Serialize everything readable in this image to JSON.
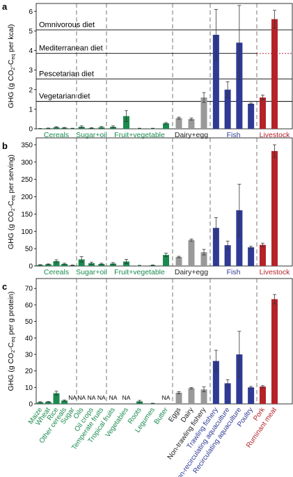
{
  "colors": {
    "cereals": "#1a8a4e",
    "sugar": "#1a8a4e",
    "fruit": "#1a8a4e",
    "dairy": "#999999",
    "fish": "#2e3a94",
    "livestock": "#b4232a",
    "label_green": "#1a8a4e",
    "label_dairy": "#222222",
    "label_fish": "#2e3a94",
    "label_livestock": "#b4232a"
  },
  "groups": [
    {
      "key": "cereals",
      "name": "Cereals",
      "count": 5
    },
    {
      "key": "sugar",
      "name": "Sugar+oil",
      "count": 3
    },
    {
      "key": "fruit",
      "name": "Fruit+vegetable",
      "count": 5
    },
    {
      "key": "dairy",
      "name": "Dairy+egg",
      "count": 3
    },
    {
      "key": "fish",
      "name": "Fish",
      "count": 4
    },
    {
      "key": "livestock",
      "name": "Livestock",
      "count": 3
    }
  ],
  "food_labels": [
    "Maize",
    "Wheat",
    "Rice",
    "Other cereals",
    "Sugar",
    "Oils",
    "Oil crops",
    "Temperate fruits",
    "Tropical fruits",
    "Vegetables",
    "Roots",
    "Legumes",
    "Butter",
    "Eggs",
    "Dairy",
    "Non-trawling fishery",
    "Trawling fishery",
    "Non-recirculating aquaculture",
    "Recirculating aquaculture",
    "Poultry",
    "Pork",
    "Ruminant meat"
  ],
  "chart_data": [
    {
      "panel": "a",
      "type": "bar",
      "ylabel_main": "GHG (g CO",
      "ylabel_sub1": "2",
      "ylabel_mid": "-C",
      "ylabel_sub2": "eq",
      "ylabel_tail": " per kcal)",
      "ylim": [
        0,
        6.4
      ],
      "yticks": [
        "0",
        "1",
        "2",
        "3",
        "4",
        "5",
        "6"
      ],
      "values": [
        0.01,
        0.03,
        0.08,
        0.05,
        0.02,
        0.1,
        0.04,
        0.08,
        0.1,
        0.65,
        0.02,
        0.02,
        0.28,
        0.55,
        0.5,
        1.6,
        4.8,
        2.0,
        4.4,
        1.28,
        1.6,
        5.6
      ],
      "errors": [
        0.01,
        0.01,
        0.03,
        0.02,
        0.01,
        0.05,
        0.02,
        0.04,
        0.05,
        0.28,
        0.01,
        0.01,
        0.04,
        0.05,
        0.05,
        0.25,
        1.3,
        0.4,
        1.9,
        0.04,
        0.12,
        0.45
      ],
      "diets": [
        {
          "name": "Omnivorous diet",
          "value": 5.05
        },
        {
          "name": "Mediterranean diet",
          "value": 3.85
        },
        {
          "name": "Pescetarian diet",
          "value": 2.55
        },
        {
          "name": "Vegetarian diet",
          "value": 1.4
        }
      ]
    },
    {
      "panel": "b",
      "type": "bar",
      "ylabel_main": "GHG (g CO",
      "ylabel_sub1": "2",
      "ylabel_mid": "-C",
      "ylabel_sub2": "eq",
      "ylabel_tail": " per serving)",
      "ylim": [
        0,
        370
      ],
      "yticks": [
        "0",
        "50",
        "100",
        "150",
        "200",
        "250",
        "300",
        "350"
      ],
      "values": [
        3,
        5,
        14,
        6,
        2,
        19,
        8,
        6,
        7,
        13,
        1,
        2,
        32,
        26,
        75,
        40,
        110,
        60,
        161,
        54,
        61,
        332
      ],
      "errors": [
        1,
        1,
        4,
        2,
        1,
        8,
        3,
        2,
        3,
        6,
        1,
        1,
        5,
        2,
        3,
        8,
        30,
        12,
        75,
        3,
        5,
        18
      ]
    },
    {
      "panel": "c",
      "type": "bar",
      "ylabel_main": "GHG (g CO",
      "ylabel_sub1": "2",
      "ylabel_mid": "-C",
      "ylabel_sub2": "eq",
      "ylabel_tail": " per g protein)",
      "ylim": [
        0,
        76
      ],
      "yticks": [
        "0",
        "10",
        "20",
        "30",
        "40",
        "50",
        "60",
        "70"
      ],
      "values": [
        1.0,
        1.2,
        6.5,
        2.0,
        null,
        null,
        null,
        null,
        null,
        null,
        1.5,
        0.3,
        null,
        6.8,
        9.5,
        8.8,
        26,
        12.5,
        30,
        10,
        10.5,
        63.5
      ],
      "errors": [
        0.3,
        0.3,
        1.2,
        0.4,
        0,
        0,
        0,
        0,
        0,
        0,
        0.6,
        0.1,
        0,
        0.6,
        0.4,
        1.5,
        6.5,
        2.2,
        14,
        0.6,
        0.6,
        2.8
      ],
      "na_label": "NA"
    }
  ]
}
